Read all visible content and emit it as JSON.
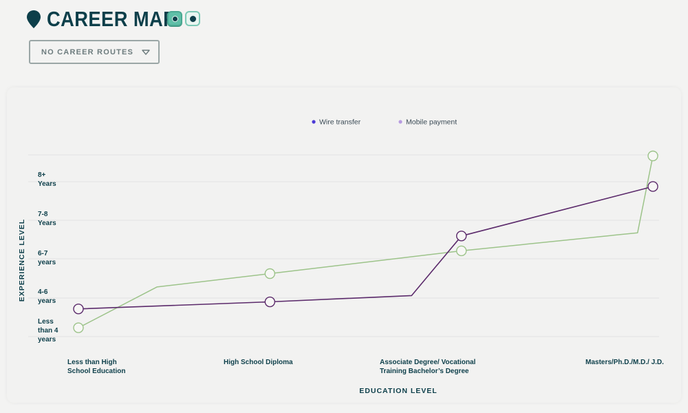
{
  "header": {
    "title": "CAREER MAP",
    "icon": "map-pin-icon",
    "toggles": [
      {
        "name": "toggle-view-1",
        "state": "on"
      },
      {
        "name": "toggle-view-2",
        "state": "off"
      }
    ]
  },
  "dropdown": {
    "label": "NO CAREER ROUTES",
    "icon": "chevron-down-icon"
  },
  "colors": {
    "title": "#0d3f4a",
    "wire_transfer_line": "#5b2a6b",
    "wire_transfer_dot": "#4b3ad6",
    "mobile_payment_line": "#9cc389",
    "mobile_payment_dot": "#b79be0",
    "grid": "#e2e2e2",
    "toggle_on": "#5fbfa8"
  },
  "chart_data": {
    "type": "line",
    "xlabel": "EDUCATION LEVEL",
    "ylabel": "EXPERIENCE LEVEL",
    "x_ticks": [
      {
        "lines": [
          "Less than High",
          "School Education"
        ]
      },
      {
        "lines": [
          "High School Diploma"
        ]
      },
      {
        "lines": [
          "Associate Degree/ Vocational",
          "Training Bachelor’s Degree"
        ]
      },
      {
        "lines": [
          "Masters/Ph.D./M.D./ J.D."
        ]
      }
    ],
    "y_ticks": [
      {
        "lines": [
          "Less",
          "than 4",
          "years"
        ]
      },
      {
        "lines": [
          "4-6",
          "years"
        ]
      },
      {
        "lines": [
          "6-7",
          "years"
        ]
      },
      {
        "lines": [
          "7-8",
          "Years"
        ]
      },
      {
        "lines": [
          "8+",
          "Years"
        ]
      }
    ],
    "xlim": [
      0,
      3
    ],
    "ylim": [
      0,
      4.6
    ],
    "grid": true,
    "legend_position": "top-center",
    "series": [
      {
        "name": "Wire transfer",
        "points": [
          {
            "x": 0,
            "y": 0.6,
            "marker": true
          },
          {
            "x": 1,
            "y": 0.78,
            "marker": true
          },
          {
            "x": 1.74,
            "y": 0.94,
            "marker": false
          },
          {
            "x": 2,
            "y": 2.46,
            "marker": true
          },
          {
            "x": 3,
            "y": 3.72,
            "marker": true
          }
        ]
      },
      {
        "name": "Mobile payment",
        "points": [
          {
            "x": 0,
            "y": 0.12,
            "marker": true
          },
          {
            "x": 0.41,
            "y": 1.16,
            "marker": false
          },
          {
            "x": 1,
            "y": 1.5,
            "marker": true
          },
          {
            "x": 2,
            "y": 2.08,
            "marker": true
          },
          {
            "x": 2.92,
            "y": 2.54,
            "marker": false
          },
          {
            "x": 3,
            "y": 4.5,
            "marker": true
          }
        ]
      }
    ]
  }
}
